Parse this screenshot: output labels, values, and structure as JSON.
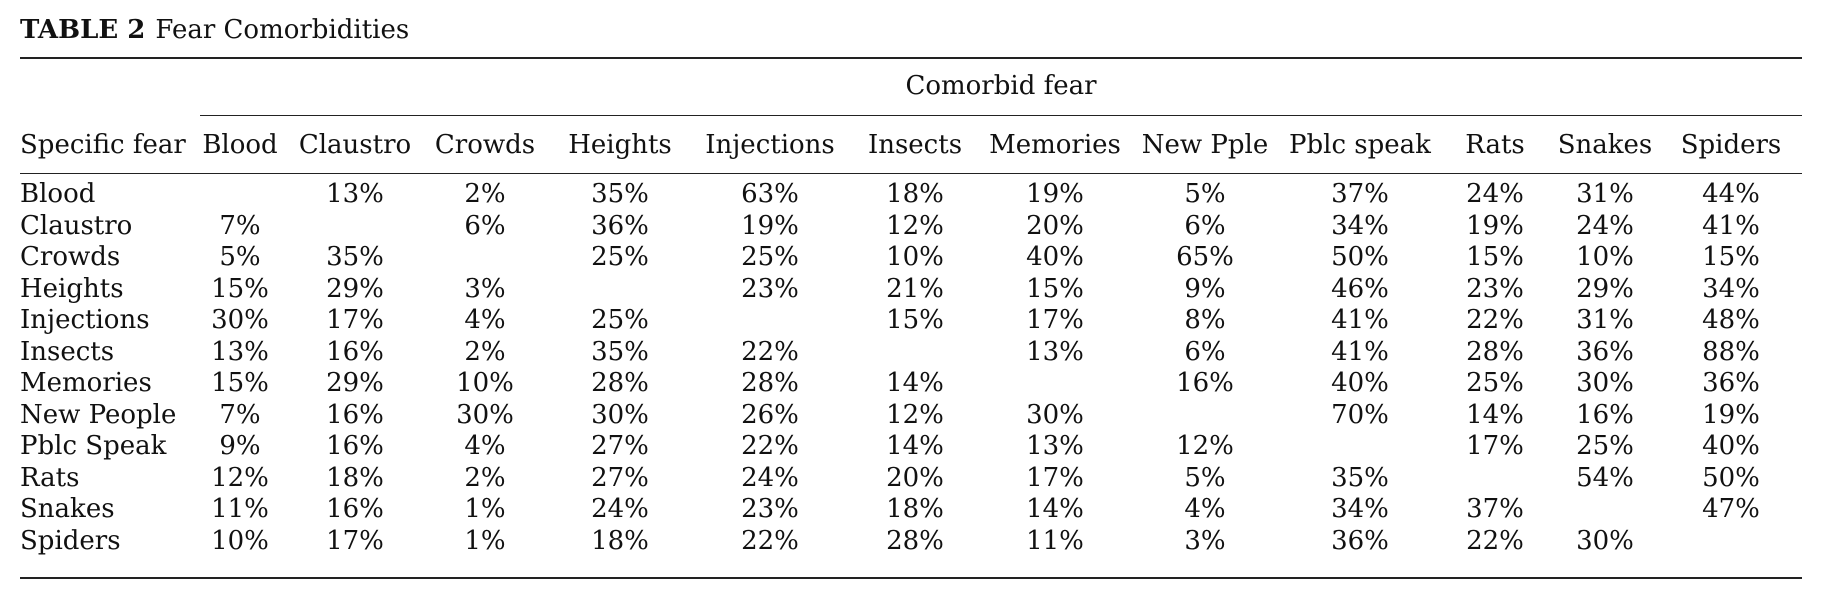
{
  "caption": {
    "label": "TABLE 2",
    "title": "Fear Comorbidities"
  },
  "group_header": "Comorbid fear",
  "row_header": "Specific fear",
  "columns": [
    "Blood",
    "Claustro",
    "Crowds",
    "Heights",
    "Injections",
    "Insects",
    "Memories",
    "New Pple",
    "Pblc speak",
    "Rats",
    "Snakes",
    "Spiders"
  ],
  "rows": [
    {
      "label": "Blood",
      "values": [
        "",
        "13%",
        "2%",
        "35%",
        "63%",
        "18%",
        "19%",
        "5%",
        "37%",
        "24%",
        "31%",
        "44%"
      ]
    },
    {
      "label": "Claustro",
      "values": [
        "7%",
        "",
        "6%",
        "36%",
        "19%",
        "12%",
        "20%",
        "6%",
        "34%",
        "19%",
        "24%",
        "41%"
      ]
    },
    {
      "label": "Crowds",
      "values": [
        "5%",
        "35%",
        "",
        "25%",
        "25%",
        "10%",
        "40%",
        "65%",
        "50%",
        "15%",
        "10%",
        "15%"
      ]
    },
    {
      "label": "Heights",
      "values": [
        "15%",
        "29%",
        "3%",
        "",
        "23%",
        "21%",
        "15%",
        "9%",
        "46%",
        "23%",
        "29%",
        "34%"
      ]
    },
    {
      "label": "Injections",
      "values": [
        "30%",
        "17%",
        "4%",
        "25%",
        "",
        "15%",
        "17%",
        "8%",
        "41%",
        "22%",
        "31%",
        "48%"
      ]
    },
    {
      "label": "Insects",
      "values": [
        "13%",
        "16%",
        "2%",
        "35%",
        "22%",
        "",
        "13%",
        "6%",
        "41%",
        "28%",
        "36%",
        "88%"
      ]
    },
    {
      "label": "Memories",
      "values": [
        "15%",
        "29%",
        "10%",
        "28%",
        "28%",
        "14%",
        "",
        "16%",
        "40%",
        "25%",
        "30%",
        "36%"
      ]
    },
    {
      "label": "New People",
      "values": [
        "7%",
        "16%",
        "30%",
        "30%",
        "26%",
        "12%",
        "30%",
        "",
        "70%",
        "14%",
        "16%",
        "19%"
      ]
    },
    {
      "label": "Pblc Speak",
      "values": [
        "9%",
        "16%",
        "4%",
        "27%",
        "22%",
        "14%",
        "13%",
        "12%",
        "",
        "17%",
        "25%",
        "40%"
      ]
    },
    {
      "label": "Rats",
      "values": [
        "12%",
        "18%",
        "2%",
        "27%",
        "24%",
        "20%",
        "17%",
        "5%",
        "35%",
        "",
        "54%",
        "50%"
      ]
    },
    {
      "label": "Snakes",
      "values": [
        "11%",
        "16%",
        "1%",
        "24%",
        "23%",
        "18%",
        "14%",
        "4%",
        "34%",
        "37%",
        "",
        "47%"
      ]
    },
    {
      "label": "Spiders",
      "values": [
        "10%",
        "17%",
        "1%",
        "18%",
        "22%",
        "28%",
        "11%",
        "3%",
        "36%",
        "22%",
        "30%",
        ""
      ]
    }
  ]
}
